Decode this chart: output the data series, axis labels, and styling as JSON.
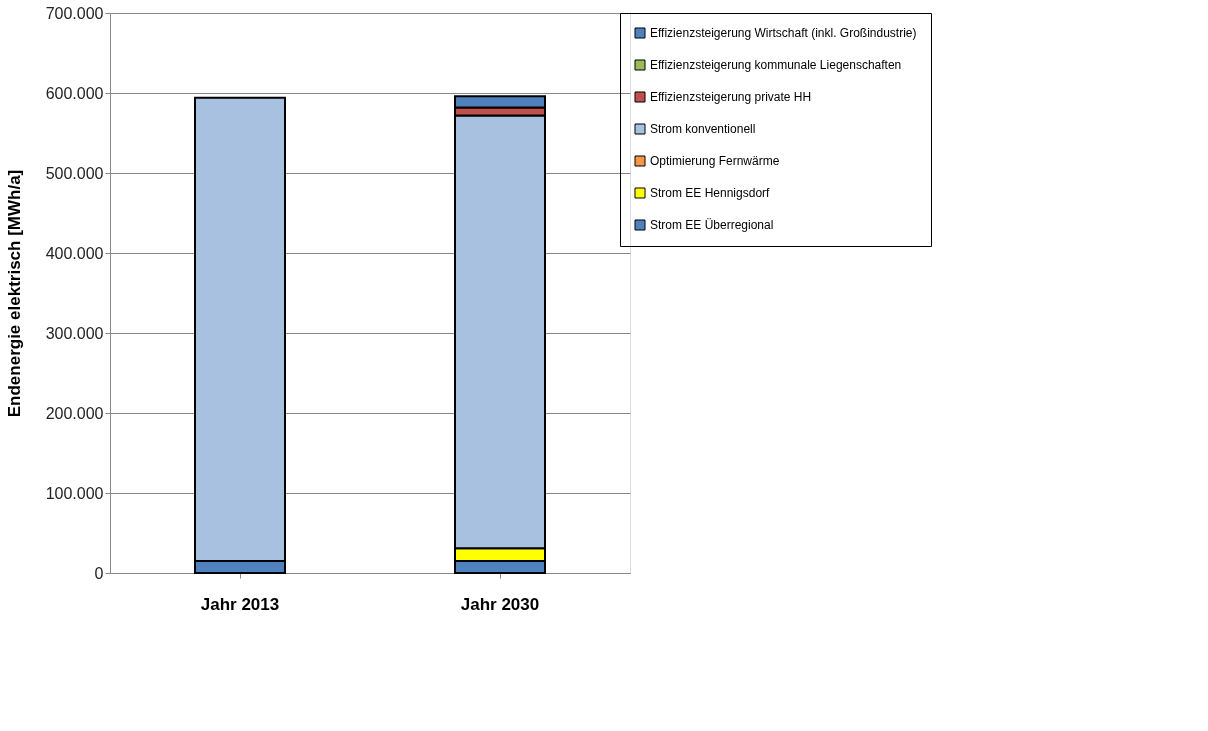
{
  "chart_data": {
    "type": "bar",
    "stacked": true,
    "ylabel": "Endenergie elektrisch [MWh/a]",
    "categories": [
      "Jahr 2013",
      "Jahr 2030"
    ],
    "series": [
      {
        "name": "Strom EE Überregional",
        "color": "#4f81bd",
        "values": [
          15000,
          15000
        ]
      },
      {
        "name": "Strom EE Hennigsdorf",
        "color": "#ffff00",
        "values": [
          null,
          16000
        ]
      },
      {
        "name": "Optimierung Fernwärme",
        "color": "#f79646",
        "values": [
          null,
          null
        ]
      },
      {
        "name": "Strom konventionell",
        "color": "#a9c1e0",
        "values": [
          579000,
          541000
        ]
      },
      {
        "name": "Effizienzsteigerung private HH",
        "color": "#c0504d",
        "values": [
          null,
          10000
        ]
      },
      {
        "name": "Effizienzsteigerung kommunale Liegenschaften",
        "color": "#9bbb59",
        "values": [
          null,
          null
        ]
      },
      {
        "name": "Effizienzsteigerung Wirtschaft (inkl. Großindustrie)",
        "color": "#4f81bd",
        "values": [
          null,
          14000
        ]
      }
    ],
    "ylim": [
      0,
      700000
    ],
    "yticks": [
      0,
      {
        "value": 100000,
        "label": "100.000"
      },
      {
        "value": 200000,
        "label": "200.000"
      },
      {
        "value": 300000,
        "label": "300.000"
      },
      {
        "value": 400000,
        "label": "400.000"
      },
      {
        "value": 500000,
        "label": "500.000"
      },
      {
        "value": 600000,
        "label": "600.000"
      },
      {
        "value": 700000,
        "label": "700.000"
      }
    ],
    "grid": "y",
    "legend": "right"
  }
}
